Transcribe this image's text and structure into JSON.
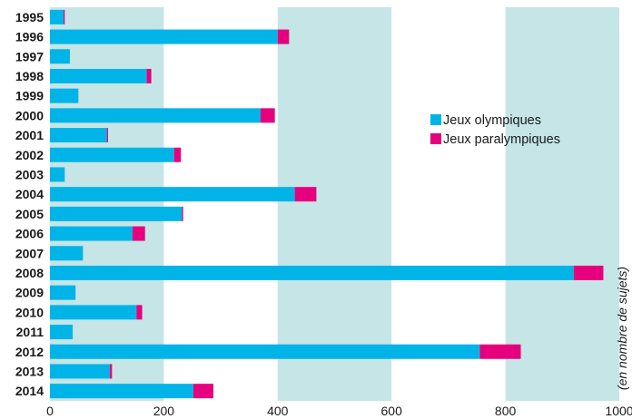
{
  "chart_data": {
    "type": "bar",
    "orientation": "horizontal",
    "stacked": true,
    "categories": [
      "1995",
      "1996",
      "1997",
      "1998",
      "1999",
      "2000",
      "2001",
      "2002",
      "2003",
      "2004",
      "2005",
      "2006",
      "2007",
      "2008",
      "2009",
      "2010",
      "2011",
      "2012",
      "2013",
      "2014"
    ],
    "series": [
      {
        "name": "Jeux olympiques",
        "color": "#00b4e8",
        "values": [
          24,
          400,
          35,
          170,
          50,
          370,
          100,
          218,
          26,
          430,
          232,
          145,
          58,
          920,
          45,
          152,
          40,
          755,
          105,
          252
        ]
      },
      {
        "name": "Jeux paralympiques",
        "color": "#e6007e",
        "values": [
          2,
          20,
          0,
          8,
          0,
          25,
          2,
          12,
          0,
          38,
          2,
          22,
          0,
          52,
          0,
          10,
          0,
          72,
          4,
          35
        ]
      }
    ],
    "xlim": [
      0,
      1000
    ],
    "xticks": [
      0,
      200,
      400,
      600,
      800,
      1000
    ],
    "ylabel": "(en nombre de sujets)",
    "background_band_color": "#c6e5e6",
    "background_bands": [
      [
        0,
        200
      ],
      [
        400,
        600
      ],
      [
        800,
        1000
      ]
    ],
    "legend_position": "right"
  }
}
